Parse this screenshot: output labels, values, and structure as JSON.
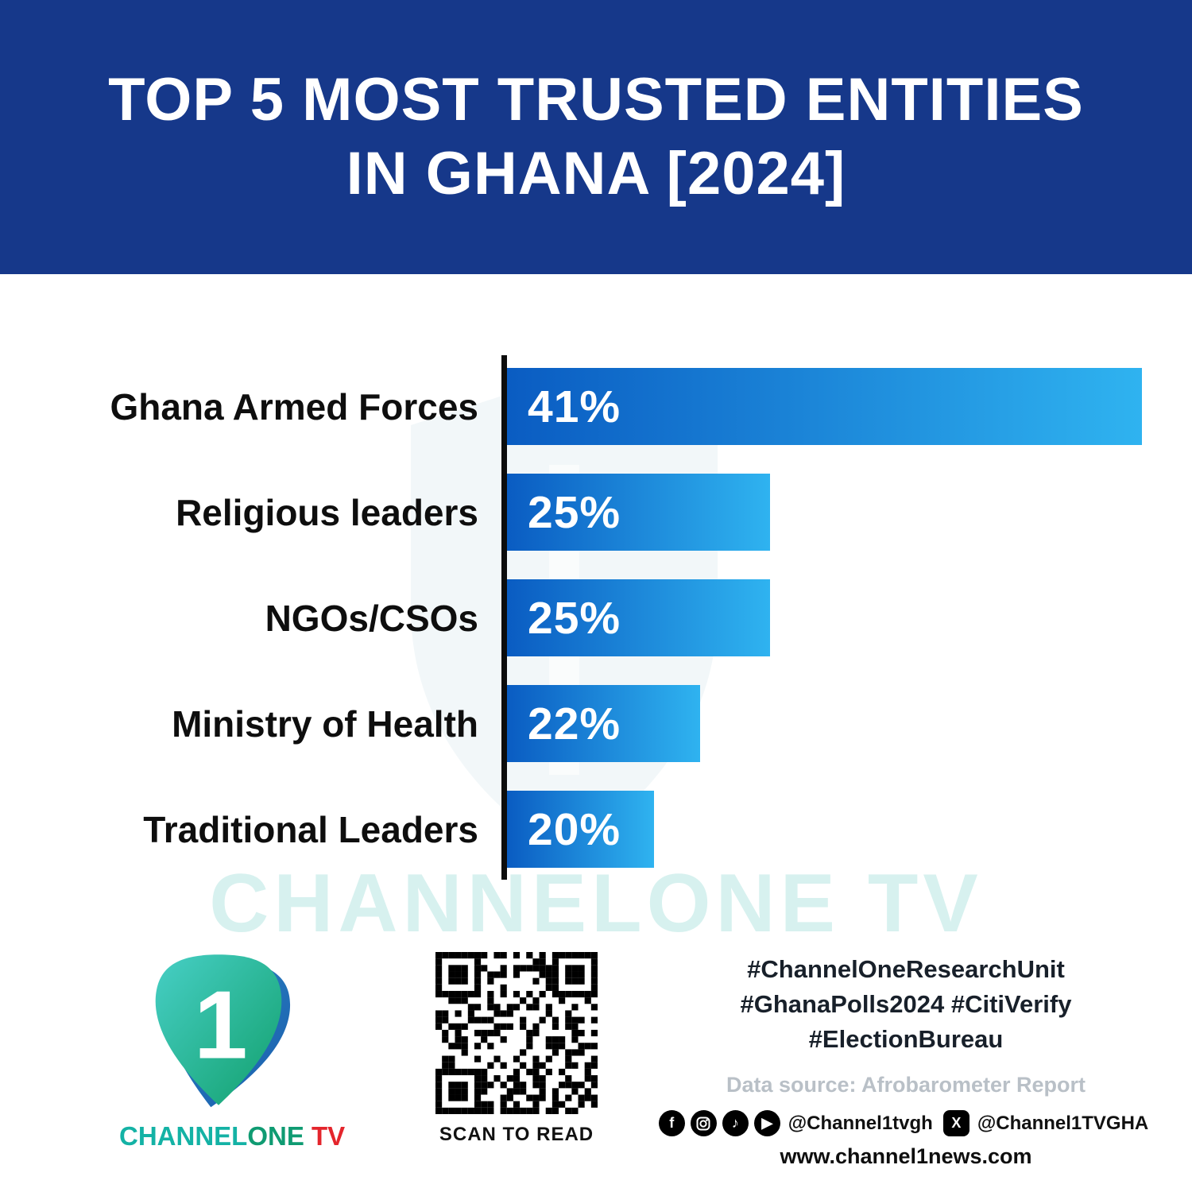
{
  "header": {
    "title_line1": "TOP 5 MOST TRUSTED ENTITIES",
    "title_line2": "IN GHANA [2024]",
    "bg_color": "#16388a",
    "text_color": "#ffffff"
  },
  "chart_data": {
    "type": "bar",
    "orientation": "horizontal",
    "title": "Top 5 most trusted entities in Ghana [2024]",
    "categories": [
      "Ghana Armed Forces",
      "Religious leaders",
      "NGOs/CSOs",
      "Ministry of Health",
      "Traditional Leaders"
    ],
    "values": [
      41,
      25,
      25,
      22,
      20
    ],
    "value_labels": [
      "41%",
      "25%",
      "25%",
      "22%",
      "20%"
    ],
    "bar_display_pct": [
      100,
      41.4,
      41.4,
      30.4,
      23.2
    ],
    "bar_gradient": [
      "#0a5cc2",
      "#2fb3f0"
    ],
    "axis_color": "#0d0d0d",
    "grid": false,
    "legend": false
  },
  "watermark": {
    "text": "CHANNELONE TV",
    "color": "#24b2a5"
  },
  "footer": {
    "logo": {
      "numeral": "1",
      "brand_channel": "CHANNEL",
      "brand_one": "ONE",
      "brand_tv": " TV",
      "teal": "#14b2a5",
      "red": "#e4252c"
    },
    "qr_caption": "SCAN TO READ",
    "hashtags_line1": "#ChannelOneResearchUnit",
    "hashtags_line2": "#GhanaPolls2024 #CitiVerify",
    "hashtags_line3": "#ElectionBureau",
    "data_source": "Data source: Afrobarometer Report",
    "social_handle1": "@Channel1tvgh",
    "social_handle2": "@Channel1TVGHA",
    "website": "www.channel1news.com",
    "icons": {
      "facebook_glyph": "f",
      "tiktok_glyph": "♪",
      "youtube_glyph": "▶",
      "x_glyph": "X"
    }
  }
}
